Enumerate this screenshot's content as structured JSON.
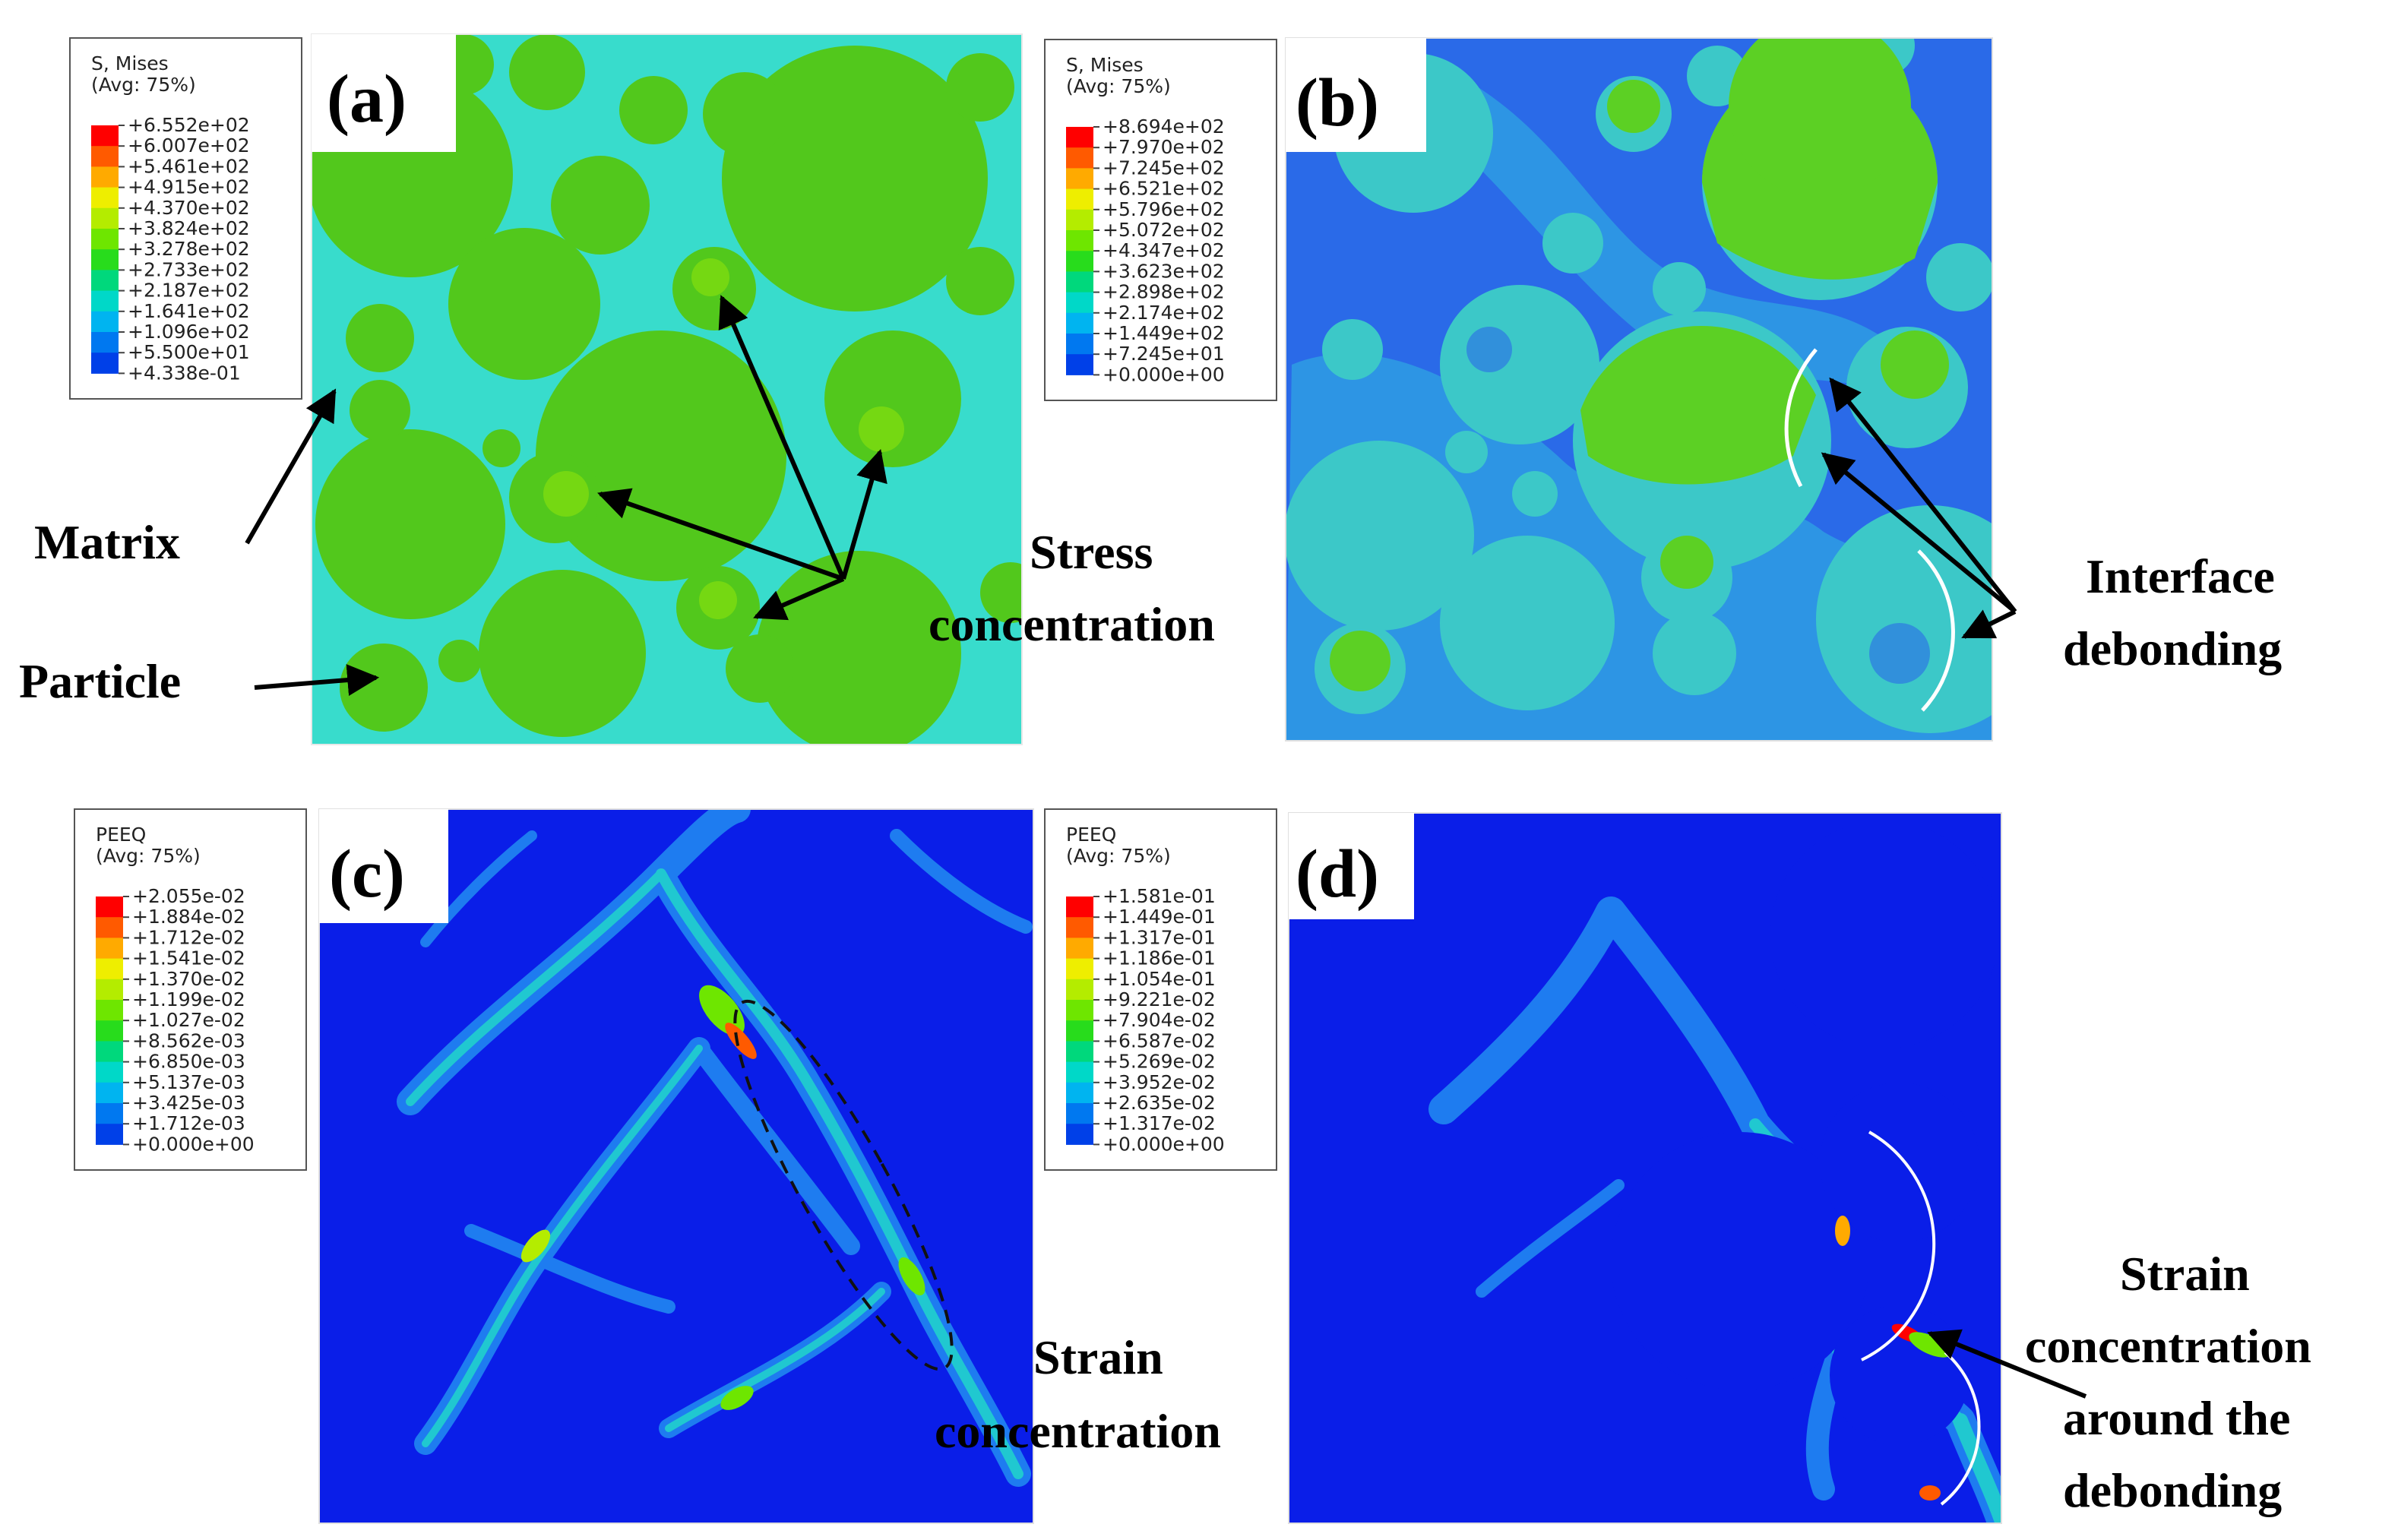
{
  "panels": [
    {
      "label": "(a)",
      "legend_title": [
        "S, Mises",
        "(Avg: 75%)"
      ],
      "legend_values": [
        "+6.552e+02",
        "+6.007e+02",
        "+5.461e+02",
        "+4.915e+02",
        "+4.370e+02",
        "+3.824e+02",
        "+3.278e+02",
        "+2.733e+02",
        "+2.187e+02",
        "+1.641e+02",
        "+1.096e+02",
        "+5.500e+01",
        "+4.338e-01"
      ]
    },
    {
      "label": "(b)",
      "legend_title": [
        "S, Mises",
        "(Avg: 75%)"
      ],
      "legend_values": [
        "+8.694e+02",
        "+7.970e+02",
        "+7.245e+02",
        "+6.521e+02",
        "+5.796e+02",
        "+5.072e+02",
        "+4.347e+02",
        "+3.623e+02",
        "+2.898e+02",
        "+2.174e+02",
        "+1.449e+02",
        "+7.245e+01",
        "+0.000e+00"
      ]
    },
    {
      "label": "(c)",
      "legend_title": [
        "PEEQ",
        "(Avg: 75%)"
      ],
      "legend_values": [
        "+2.055e-02",
        "+1.884e-02",
        "+1.712e-02",
        "+1.541e-02",
        "+1.370e-02",
        "+1.199e-02",
        "+1.027e-02",
        "+8.562e-03",
        "+6.850e-03",
        "+5.137e-03",
        "+3.425e-03",
        "+1.712e-03",
        "+0.000e+00"
      ]
    },
    {
      "label": "(d)",
      "legend_title": [
        "PEEQ",
        "(Avg: 75%)"
      ],
      "legend_values": [
        "+1.581e-01",
        "+1.449e-01",
        "+1.317e-01",
        "+1.186e-01",
        "+1.054e-01",
        "+9.221e-02",
        "+7.904e-02",
        "+6.587e-02",
        "+5.269e-02",
        "+3.952e-02",
        "+2.635e-02",
        "+1.317e-02",
        "+0.000e+00"
      ]
    }
  ],
  "contour_colors": [
    "#ff0000",
    "#ff5a00",
    "#ffaa00",
    "#eeee00",
    "#b4ec00",
    "#6ee600",
    "#28dc1c",
    "#00d87c",
    "#00d8c8",
    "#00b4f0",
    "#0078f0",
    "#0040e8",
    "#0000e0"
  ],
  "annotations": {
    "matrix": "Matrix",
    "particle": "Particle",
    "stress": [
      "Stress",
      "concentration"
    ],
    "interface": [
      "Interface",
      "debonding"
    ],
    "strain_c": [
      "Strain",
      "concentration"
    ],
    "strain_d": [
      "Strain",
      "concentration",
      "around the",
      "debonding"
    ]
  }
}
